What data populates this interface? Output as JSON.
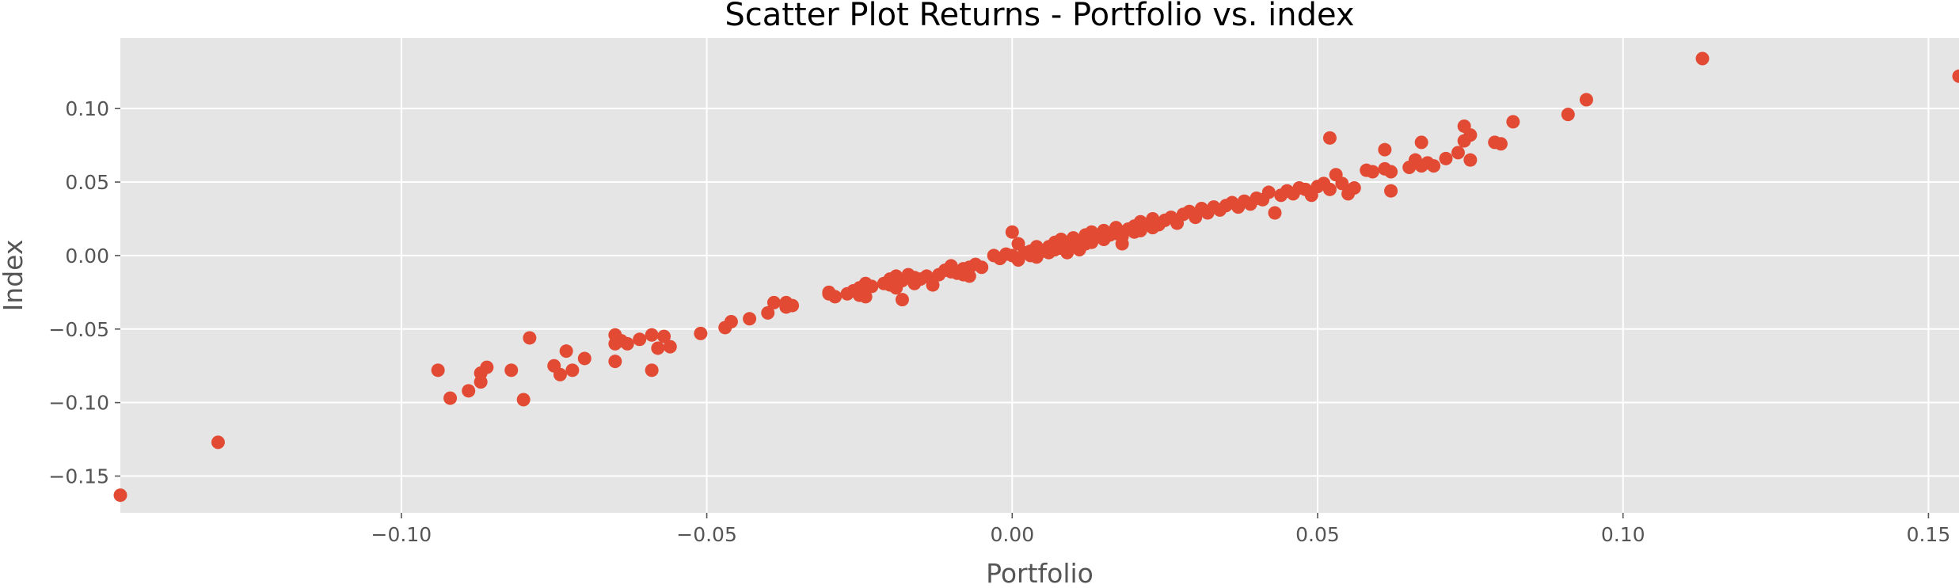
{
  "chart_data": {
    "type": "scatter",
    "title": "Scatter Plot Returns - Portfolio vs. index",
    "xlabel": "Portfolio",
    "ylabel": "Index",
    "xlim": [
      -0.146,
      0.155
    ],
    "ylim": [
      -0.175,
      0.148
    ],
    "x_ticks": [
      -0.1,
      -0.05,
      0.0,
      0.05,
      0.1,
      0.15
    ],
    "x_tick_labels": [
      "−0.10",
      "−0.05",
      "0.00",
      "0.05",
      "0.10",
      "0.15"
    ],
    "y_ticks": [
      -0.15,
      -0.1,
      -0.05,
      0.0,
      0.05,
      0.1
    ],
    "y_tick_labels": [
      "−0.15",
      "−0.10",
      "−0.05",
      "0.00",
      "0.05",
      "0.10"
    ],
    "grid": true,
    "legend": "none",
    "colors": {
      "marker": "#E24A33",
      "plot_background": "#E5E5E5",
      "grid": "#FFFFFF",
      "tick_text": "#555555",
      "title_text": "#000000"
    },
    "series": [
      {
        "points": [
          [
            -0.146,
            -0.163
          ],
          [
            -0.13,
            -0.127
          ],
          [
            -0.094,
            -0.078
          ],
          [
            -0.092,
            -0.097
          ],
          [
            -0.089,
            -0.092
          ],
          [
            -0.087,
            -0.08
          ],
          [
            -0.087,
            -0.086
          ],
          [
            -0.086,
            -0.076
          ],
          [
            -0.082,
            -0.078
          ],
          [
            -0.08,
            -0.098
          ],
          [
            -0.079,
            -0.056
          ],
          [
            -0.075,
            -0.075
          ],
          [
            -0.074,
            -0.081
          ],
          [
            -0.073,
            -0.065
          ],
          [
            -0.072,
            -0.078
          ],
          [
            -0.07,
            -0.07
          ],
          [
            -0.065,
            -0.054
          ],
          [
            -0.065,
            -0.06
          ],
          [
            -0.065,
            -0.072
          ],
          [
            -0.064,
            -0.058
          ],
          [
            -0.063,
            -0.06
          ],
          [
            -0.061,
            -0.057
          ],
          [
            -0.059,
            -0.054
          ],
          [
            -0.059,
            -0.078
          ],
          [
            -0.058,
            -0.063
          ],
          [
            -0.057,
            -0.055
          ],
          [
            -0.056,
            -0.062
          ],
          [
            -0.051,
            -0.053
          ],
          [
            -0.047,
            -0.049
          ],
          [
            -0.046,
            -0.045
          ],
          [
            -0.043,
            -0.043
          ],
          [
            -0.04,
            -0.039
          ],
          [
            -0.039,
            -0.032
          ],
          [
            -0.037,
            -0.032
          ],
          [
            -0.037,
            -0.035
          ],
          [
            -0.036,
            -0.034
          ],
          [
            -0.03,
            -0.025
          ],
          [
            -0.03,
            -0.026
          ],
          [
            -0.029,
            -0.028
          ],
          [
            -0.027,
            -0.026
          ],
          [
            -0.026,
            -0.024
          ],
          [
            -0.025,
            -0.022
          ],
          [
            -0.025,
            -0.027
          ],
          [
            -0.024,
            -0.019
          ],
          [
            -0.024,
            -0.028
          ],
          [
            -0.023,
            -0.021
          ],
          [
            -0.021,
            -0.019
          ],
          [
            -0.02,
            -0.02
          ],
          [
            -0.02,
            -0.016
          ],
          [
            -0.019,
            -0.014
          ],
          [
            -0.019,
            -0.022
          ],
          [
            -0.018,
            -0.017
          ],
          [
            -0.018,
            -0.03
          ],
          [
            -0.017,
            -0.013
          ],
          [
            -0.016,
            -0.015
          ],
          [
            -0.016,
            -0.019
          ],
          [
            -0.015,
            -0.016
          ],
          [
            -0.014,
            -0.014
          ],
          [
            -0.013,
            -0.02
          ],
          [
            -0.012,
            -0.013
          ],
          [
            -0.011,
            -0.01
          ],
          [
            -0.01,
            -0.011
          ],
          [
            -0.01,
            -0.007
          ],
          [
            -0.009,
            -0.012
          ],
          [
            -0.008,
            -0.009
          ],
          [
            -0.008,
            -0.013
          ],
          [
            -0.007,
            -0.008
          ],
          [
            -0.007,
            -0.014
          ],
          [
            -0.006,
            -0.006
          ],
          [
            -0.005,
            -0.008
          ],
          [
            -0.003,
            0.0
          ],
          [
            -0.002,
            -0.002
          ],
          [
            -0.001,
            0.001
          ],
          [
            0.0,
            0.016
          ],
          [
            0.0,
            0.0
          ],
          [
            0.001,
            0.008
          ],
          [
            0.001,
            -0.003
          ],
          [
            0.002,
            0.002
          ],
          [
            0.003,
            0.003
          ],
          [
            0.003,
            0.0
          ],
          [
            0.004,
            0.006
          ],
          [
            0.004,
            -0.001
          ],
          [
            0.005,
            0.003
          ],
          [
            0.006,
            0.002
          ],
          [
            0.006,
            0.006
          ],
          [
            0.007,
            0.004
          ],
          [
            0.007,
            0.009
          ],
          [
            0.008,
            0.005
          ],
          [
            0.008,
            0.011
          ],
          [
            0.009,
            0.008
          ],
          [
            0.009,
            0.002
          ],
          [
            0.01,
            0.012
          ],
          [
            0.01,
            0.006
          ],
          [
            0.011,
            0.004
          ],
          [
            0.011,
            0.01
          ],
          [
            0.012,
            0.014
          ],
          [
            0.012,
            0.008
          ],
          [
            0.013,
            0.009
          ],
          [
            0.013,
            0.016
          ],
          [
            0.014,
            0.013
          ],
          [
            0.015,
            0.017
          ],
          [
            0.015,
            0.011
          ],
          [
            0.016,
            0.014
          ],
          [
            0.017,
            0.019
          ],
          [
            0.017,
            0.015
          ],
          [
            0.018,
            0.013
          ],
          [
            0.018,
            0.008
          ],
          [
            0.019,
            0.018
          ],
          [
            0.02,
            0.02
          ],
          [
            0.02,
            0.016
          ],
          [
            0.021,
            0.023
          ],
          [
            0.021,
            0.017
          ],
          [
            0.022,
            0.021
          ],
          [
            0.023,
            0.019
          ],
          [
            0.023,
            0.025
          ],
          [
            0.024,
            0.021
          ],
          [
            0.025,
            0.024
          ],
          [
            0.026,
            0.026
          ],
          [
            0.027,
            0.022
          ],
          [
            0.028,
            0.028
          ],
          [
            0.029,
            0.03
          ],
          [
            0.03,
            0.026
          ],
          [
            0.031,
            0.032
          ],
          [
            0.032,
            0.029
          ],
          [
            0.033,
            0.033
          ],
          [
            0.034,
            0.031
          ],
          [
            0.035,
            0.034
          ],
          [
            0.036,
            0.036
          ],
          [
            0.037,
            0.033
          ],
          [
            0.038,
            0.037
          ],
          [
            0.039,
            0.035
          ],
          [
            0.04,
            0.039
          ],
          [
            0.041,
            0.038
          ],
          [
            0.042,
            0.043
          ],
          [
            0.043,
            0.029
          ],
          [
            0.044,
            0.041
          ],
          [
            0.045,
            0.044
          ],
          [
            0.046,
            0.042
          ],
          [
            0.047,
            0.046
          ],
          [
            0.048,
            0.045
          ],
          [
            0.049,
            0.041
          ],
          [
            0.05,
            0.047
          ],
          [
            0.051,
            0.049
          ],
          [
            0.052,
            0.045
          ],
          [
            0.052,
            0.08
          ],
          [
            0.053,
            0.055
          ],
          [
            0.054,
            0.049
          ],
          [
            0.055,
            0.042
          ],
          [
            0.056,
            0.046
          ],
          [
            0.058,
            0.058
          ],
          [
            0.059,
            0.057
          ],
          [
            0.061,
            0.059
          ],
          [
            0.061,
            0.072
          ],
          [
            0.062,
            0.057
          ],
          [
            0.062,
            0.044
          ],
          [
            0.065,
            0.06
          ],
          [
            0.066,
            0.065
          ],
          [
            0.067,
            0.061
          ],
          [
            0.067,
            0.077
          ],
          [
            0.068,
            0.063
          ],
          [
            0.069,
            0.061
          ],
          [
            0.071,
            0.066
          ],
          [
            0.073,
            0.07
          ],
          [
            0.074,
            0.088
          ],
          [
            0.074,
            0.078
          ],
          [
            0.075,
            0.082
          ],
          [
            0.075,
            0.065
          ],
          [
            0.079,
            0.077
          ],
          [
            0.08,
            0.076
          ],
          [
            0.082,
            0.091
          ],
          [
            0.091,
            0.096
          ],
          [
            0.094,
            0.106
          ],
          [
            0.113,
            0.134
          ],
          [
            0.155,
            0.122
          ]
        ]
      }
    ]
  }
}
